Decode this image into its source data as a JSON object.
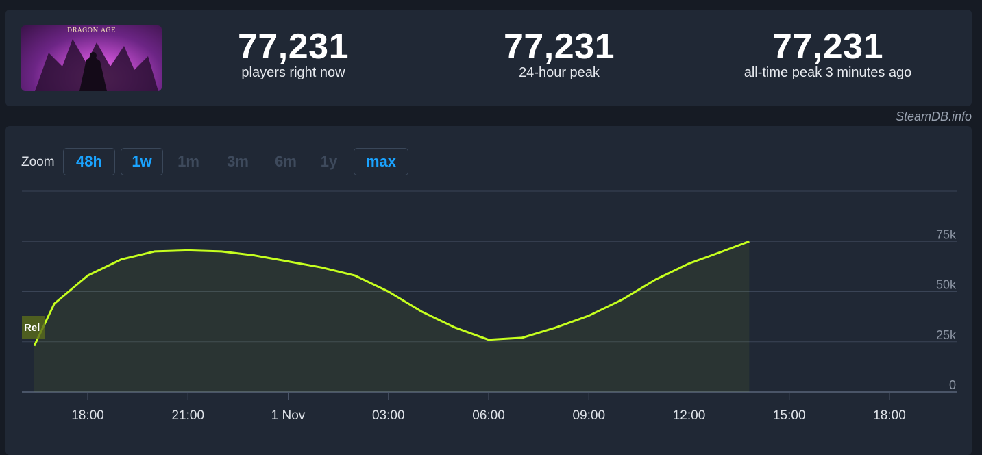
{
  "game": {
    "thumbnail_icon": "dragon-age-cover-art",
    "thumbnail_logo": "DRAGON AGE"
  },
  "stats": [
    {
      "value": "77,231",
      "label": "players right now"
    },
    {
      "value": "77,231",
      "label": "24-hour peak"
    },
    {
      "value": "77,231",
      "label": "all-time peak 3 minutes ago"
    }
  ],
  "credit": "SteamDB.info",
  "zoom": {
    "label": "Zoom",
    "options": [
      {
        "label": "48h",
        "active": true
      },
      {
        "label": "1w",
        "active": true
      },
      {
        "label": "1m",
        "active": false
      },
      {
        "label": "3m",
        "active": false
      },
      {
        "label": "6m",
        "active": false
      },
      {
        "label": "1y",
        "active": false
      },
      {
        "label": "max",
        "active": true
      }
    ]
  },
  "colors": {
    "line": "#c6ff1f",
    "grid": "#3a4456",
    "active": "#1aa3ff"
  },
  "chart_data": {
    "type": "area",
    "x_unit": "hours",
    "x": [
      -1.6,
      -1,
      0,
      1,
      2,
      3,
      4,
      5,
      6,
      7,
      8,
      9,
      10,
      11,
      12,
      13,
      14,
      15,
      16,
      17,
      18,
      19,
      19.8
    ],
    "x_tick_values": [
      0,
      3,
      6,
      9,
      12,
      15,
      18,
      21,
      24
    ],
    "x_tick_labels": [
      "18:00",
      "21:00",
      "1 Nov",
      "03:00",
      "06:00",
      "09:00",
      "12:00",
      "15:00",
      "18:00"
    ],
    "series": [
      {
        "values": [
          23000,
          44000,
          58000,
          66000,
          70000,
          70500,
          70000,
          68000,
          65000,
          62000,
          58000,
          50000,
          40000,
          32000,
          26000,
          27000,
          32000,
          38000,
          46000,
          56000,
          64000,
          70000,
          75000
        ]
      }
    ],
    "y_ticks": [
      "0",
      "25k",
      "50k",
      "75k"
    ],
    "y_tick_values": [
      0,
      25000,
      50000,
      75000
    ],
    "ylim": [
      0,
      100000
    ],
    "annotation": "Rel",
    "grid": true
  }
}
